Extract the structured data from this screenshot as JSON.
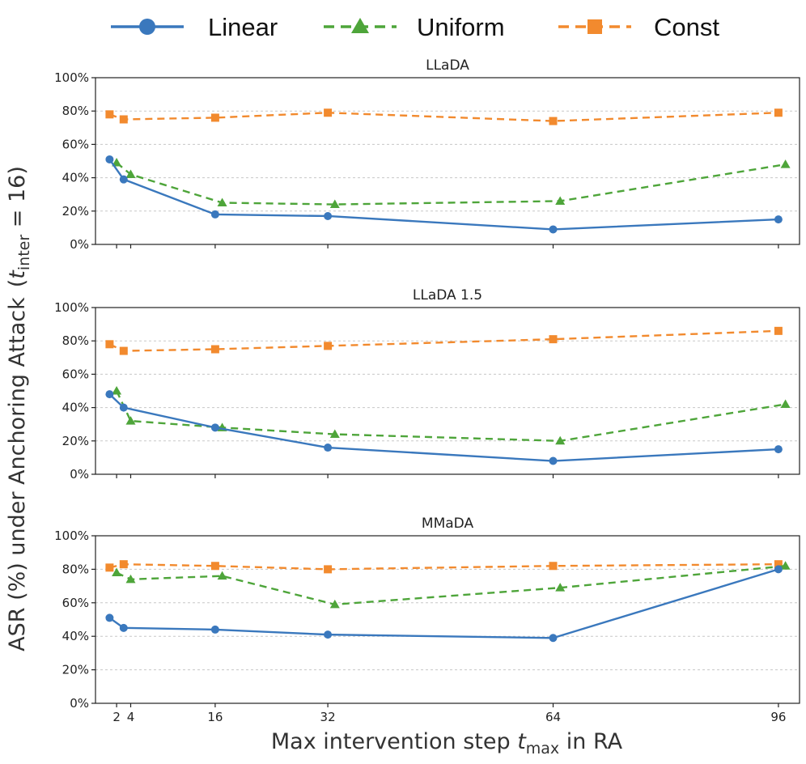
{
  "legend": [
    {
      "name": "Linear",
      "color": "#3a78bd",
      "marker": "circle",
      "dash": "solid"
    },
    {
      "name": "Uniform",
      "color": "#4ea53a",
      "marker": "triangle",
      "dash": "dashed"
    },
    {
      "name": "Const",
      "color": "#f28a2e",
      "marker": "square",
      "dash": "dashed"
    }
  ],
  "axes": {
    "xlabel_prefix": "Max intervention step ",
    "xlabel_var": "t",
    "xlabel_sub": "max",
    "xlabel_suffix": " in RA",
    "ylabel_main": "ASR (%) under Anchoring Attack",
    "ylabel_var": "t",
    "ylabel_sub": "inter",
    "ylabel_suffix": " = 16)",
    "ylabel_open": "(",
    "xticks": [
      2,
      4,
      16,
      32,
      64,
      96
    ],
    "xtick_labels": [
      "2",
      "4",
      "16",
      "32",
      "64",
      "96"
    ],
    "yticks": [
      0,
      20,
      40,
      60,
      80,
      100
    ],
    "ytick_labels": [
      "0%",
      "20%",
      "40%",
      "60%",
      "80%",
      "100%"
    ]
  },
  "chart_data": [
    {
      "type": "line",
      "title": "LLaDA",
      "ylim": [
        0,
        100
      ],
      "xlim": [
        -1,
        99
      ],
      "grid": "horizontal dotted",
      "series": [
        {
          "name": "Linear",
          "x": [
            1,
            3,
            16,
            32,
            64,
            96
          ],
          "values": [
            51,
            39,
            18,
            17,
            9,
            15
          ]
        },
        {
          "name": "Uniform",
          "x": [
            2,
            4,
            17,
            33,
            65,
            97
          ],
          "values": [
            49,
            42,
            25,
            24,
            26,
            48
          ]
        },
        {
          "name": "Const",
          "x": [
            1,
            3,
            16,
            32,
            64,
            96
          ],
          "values": [
            78,
            75,
            76,
            79,
            74,
            79
          ]
        }
      ]
    },
    {
      "type": "line",
      "title": "LLaDA 1.5",
      "ylim": [
        0,
        100
      ],
      "xlim": [
        -1,
        99
      ],
      "grid": "horizontal dotted",
      "series": [
        {
          "name": "Linear",
          "x": [
            1,
            3,
            16,
            32,
            64,
            96
          ],
          "values": [
            48,
            40,
            28,
            16,
            8,
            15
          ]
        },
        {
          "name": "Uniform",
          "x": [
            2,
            4,
            17,
            33,
            65,
            97
          ],
          "values": [
            50,
            32,
            28,
            24,
            20,
            42
          ]
        },
        {
          "name": "Const",
          "x": [
            1,
            3,
            16,
            32,
            64,
            96
          ],
          "values": [
            78,
            74,
            75,
            77,
            81,
            86
          ]
        }
      ]
    },
    {
      "type": "line",
      "title": "MMaDA",
      "ylim": [
        0,
        100
      ],
      "xlim": [
        -1,
        99
      ],
      "grid": "horizontal dotted",
      "series": [
        {
          "name": "Linear",
          "x": [
            1,
            3,
            16,
            32,
            64,
            96
          ],
          "values": [
            51,
            45,
            44,
            41,
            39,
            80
          ]
        },
        {
          "name": "Uniform",
          "x": [
            2,
            4,
            17,
            33,
            65,
            97
          ],
          "values": [
            78,
            74,
            76,
            59,
            69,
            82
          ]
        },
        {
          "name": "Const",
          "x": [
            1,
            3,
            16,
            32,
            64,
            96
          ],
          "values": [
            81,
            83,
            82,
            80,
            82,
            83
          ]
        }
      ]
    }
  ]
}
